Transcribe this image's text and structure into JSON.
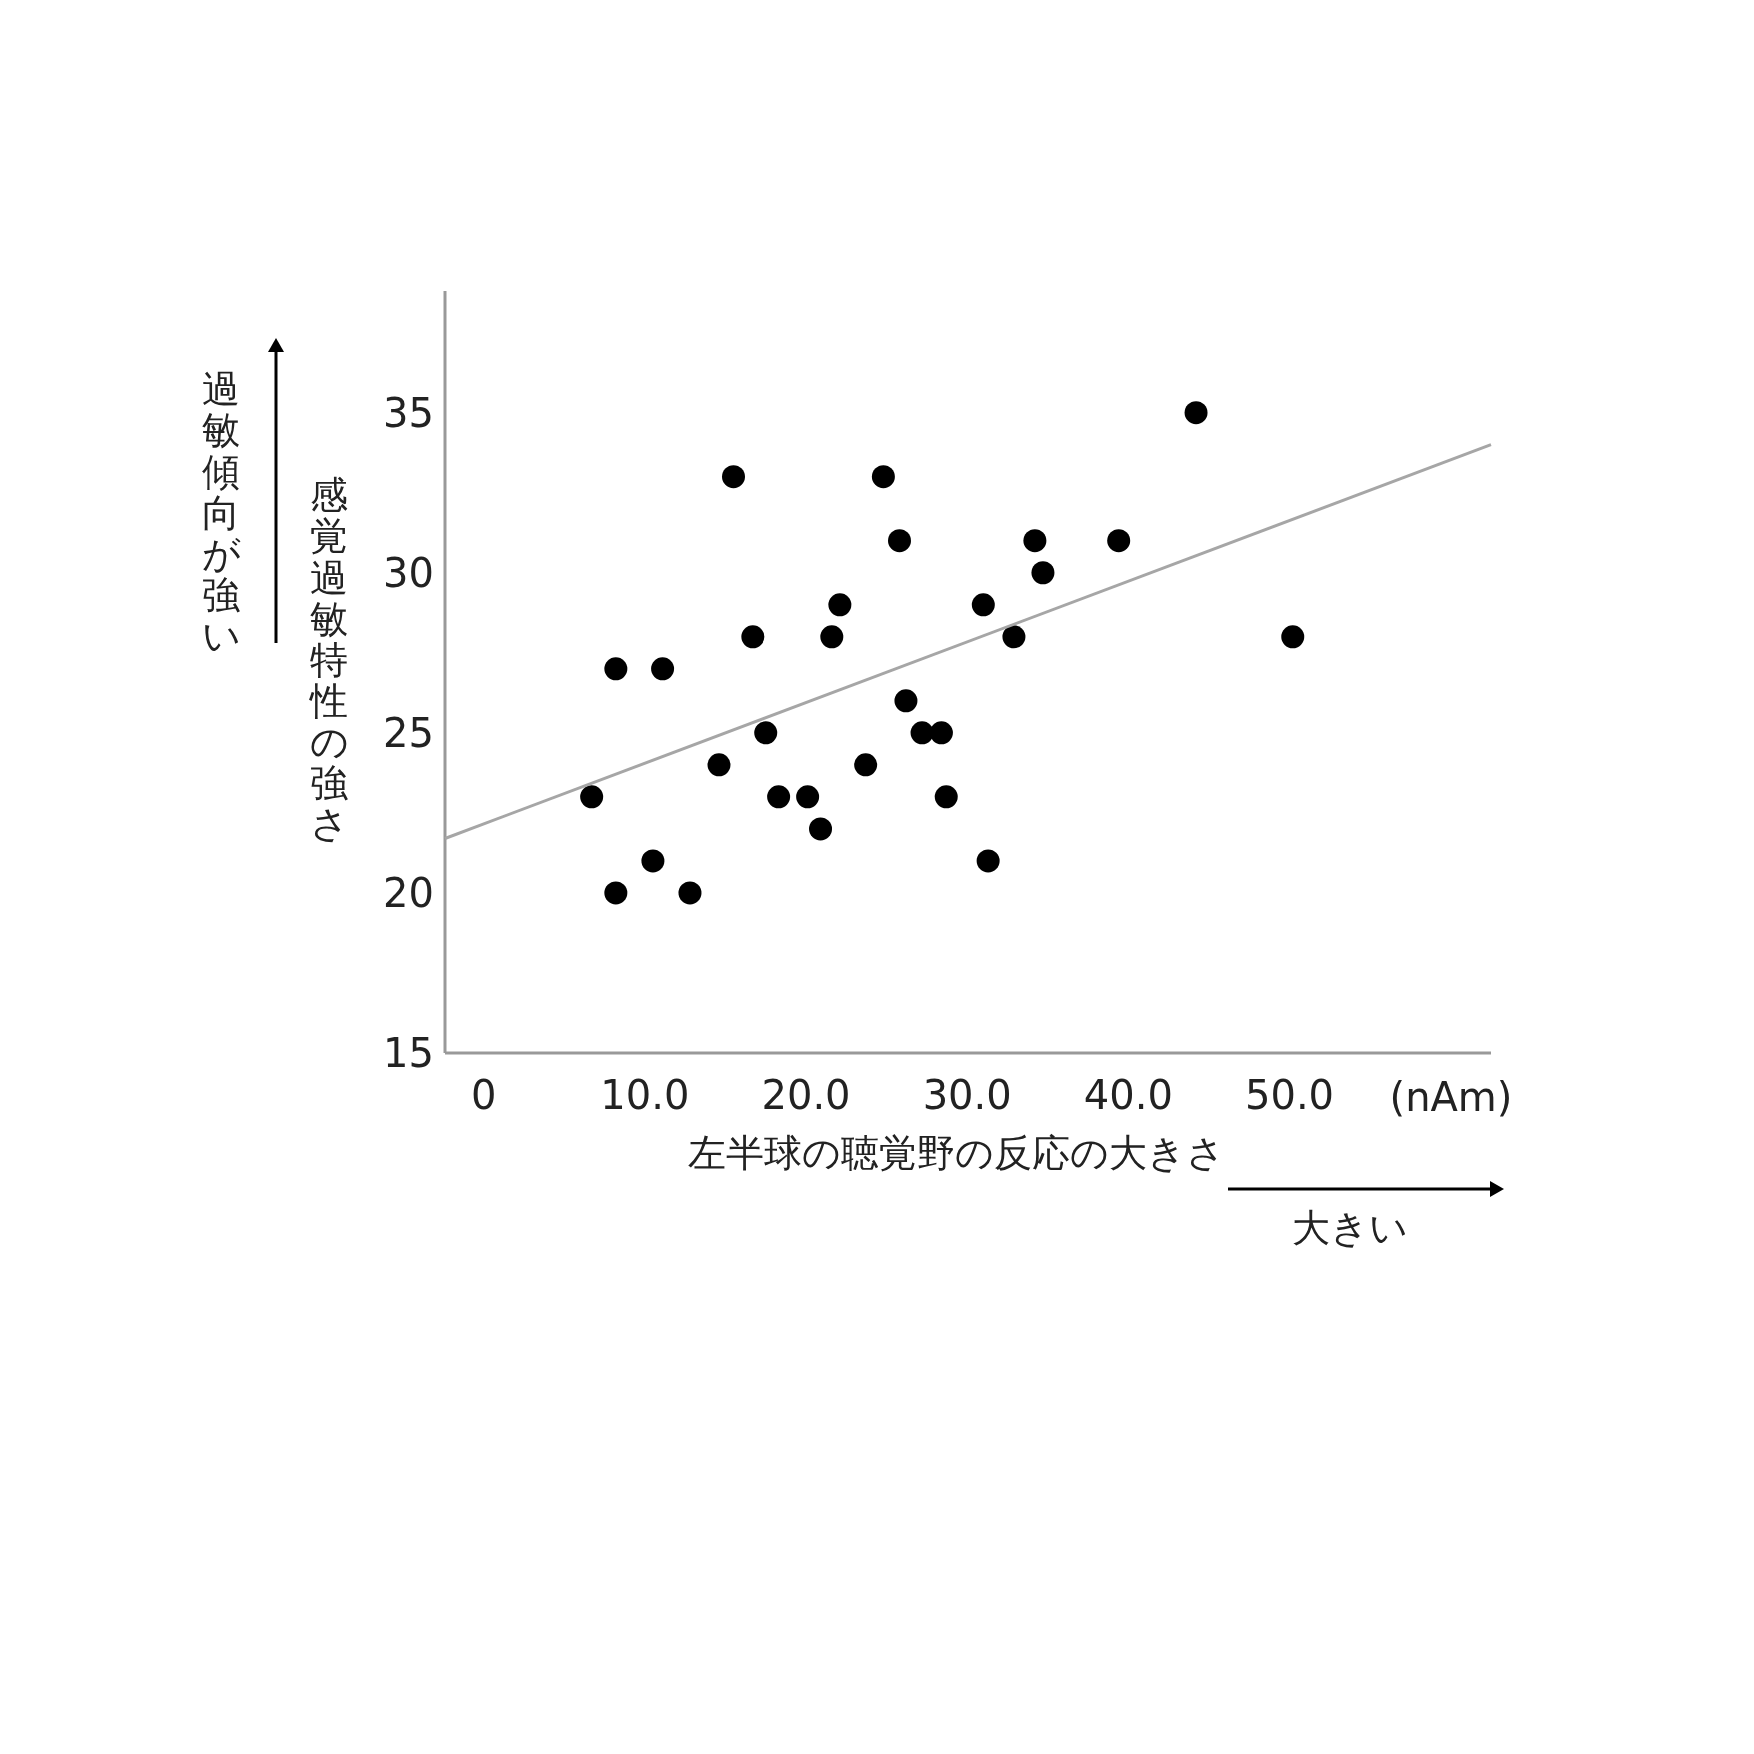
{
  "chart_data": {
    "type": "scatter",
    "xlabel": "左半球の聴覚野の反応の大きさ",
    "ylabel": "感覚過敏特性の強さ",
    "annotations": [
      "過敏傾向が強い",
      "大きい",
      "(nAm)"
    ],
    "xlim": [
      -2.4,
      62.5
    ],
    "ylim": [
      15,
      38.8
    ],
    "xticks": [
      0,
      {
        "value": 10,
        "label": "10.0"
      },
      {
        "value": 20,
        "label": "20.0"
      },
      {
        "value": 30,
        "label": "30.0"
      },
      {
        "value": 40,
        "label": "40.0"
      },
      {
        "value": 50,
        "label": "50.0"
      }
    ],
    "yticks": [
      15,
      20,
      25,
      30,
      35
    ],
    "marker": "circle",
    "series": [
      {
        "color": "#000000",
        "x": [
          6.7,
          8.2,
          8.2,
          10.5,
          11.1,
          12.8,
          14.6,
          15.5,
          16.7,
          17.5,
          18.3,
          20.1,
          20.9,
          21.6,
          22.1,
          23.7,
          24.8,
          25.8,
          26.2,
          27.2,
          28.4,
          28.7,
          31.0,
          31.3,
          32.9,
          34.2,
          34.7,
          39.4,
          44.2,
          50.2
        ],
        "values": [
          23,
          27,
          20,
          21,
          27,
          20,
          24,
          33,
          28,
          25,
          23,
          23,
          22,
          28,
          29,
          24,
          33,
          31,
          26,
          25,
          25,
          23,
          29,
          21,
          28,
          31,
          30,
          31,
          35,
          28
        ]
      },
      {
        "type": "line",
        "marker": "none",
        "color": "#a6a6a6",
        "x": [
          -2.4,
          62.5
        ],
        "values": [
          21.7,
          34.0
        ]
      }
    ]
  }
}
